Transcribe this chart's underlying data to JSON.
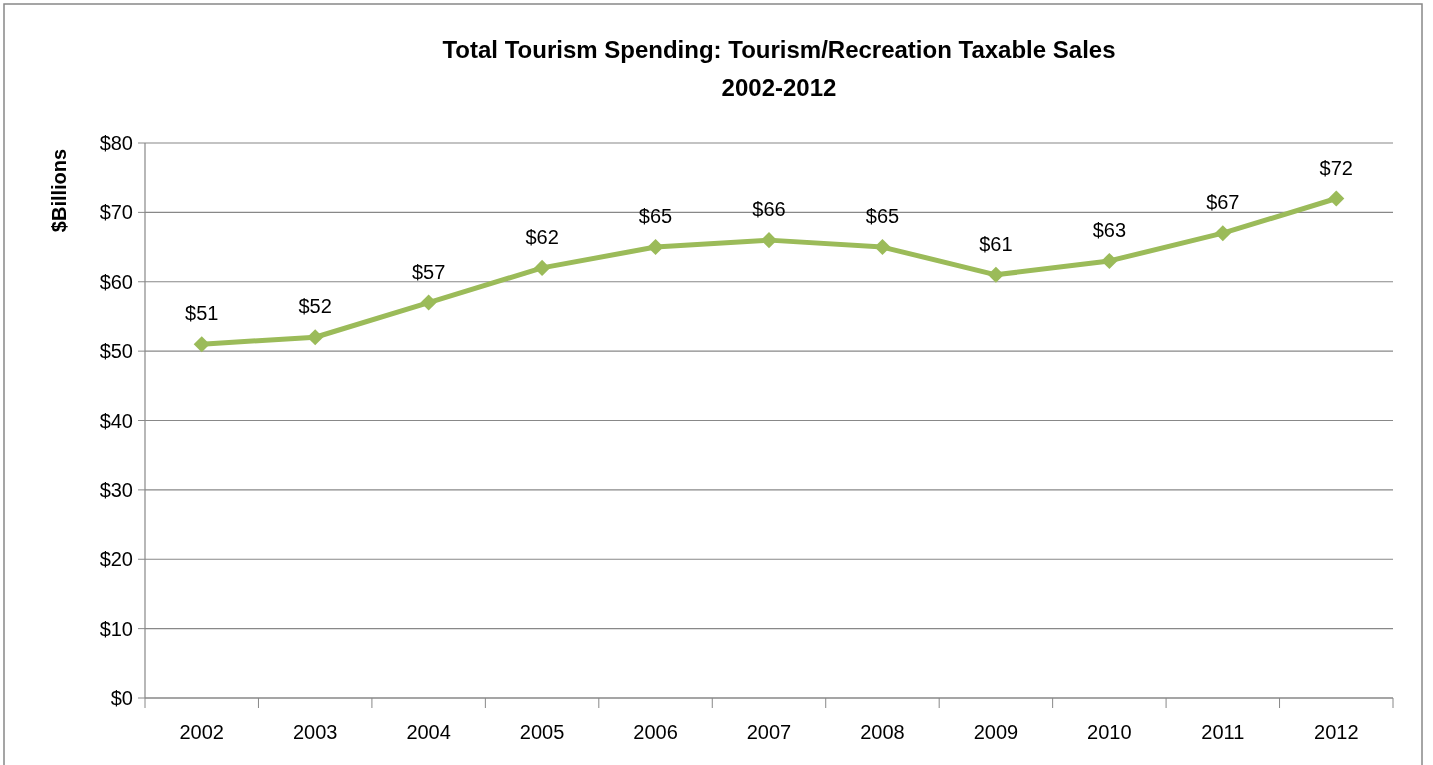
{
  "chart_data": {
    "type": "line",
    "title": "Total Tourism Spending: Tourism/Recreation Taxable Sales\n2002-2012",
    "ylabel": "$Billions",
    "categories": [
      "2002",
      "2003",
      "2004",
      "2005",
      "2006",
      "2007",
      "2008",
      "2009",
      "2010",
      "2011",
      "2012"
    ],
    "series": [
      {
        "color": "#9bbb59",
        "values": [
          51,
          52,
          57,
          62,
          65,
          66,
          65,
          61,
          63,
          67,
          72
        ],
        "value_labels": [
          "$51",
          "$52",
          "$57",
          "$62",
          "$65",
          "$66",
          "$65",
          "$61",
          "$63",
          "$67",
          "$72"
        ]
      }
    ],
    "ylim": [
      0,
      80
    ],
    "yticks": [
      {
        "value": 0,
        "label": "$0"
      },
      {
        "value": 10,
        "label": "$10"
      },
      {
        "value": 20,
        "label": "$20"
      },
      {
        "value": 30,
        "label": "$30"
      },
      {
        "value": 40,
        "label": "$40"
      },
      {
        "value": 50,
        "label": "$50"
      },
      {
        "value": 60,
        "label": "$60"
      },
      {
        "value": 70,
        "label": "$70"
      },
      {
        "value": 80,
        "label": "$80"
      }
    ],
    "grid": "y",
    "marker": "diamond",
    "line_style": "solid"
  }
}
